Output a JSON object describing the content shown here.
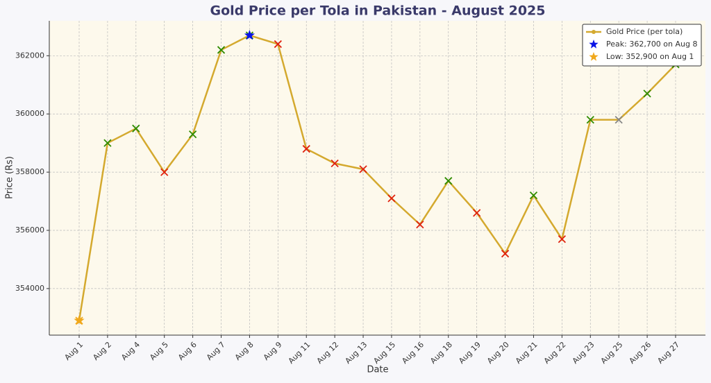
{
  "chart_data": {
    "type": "line",
    "title": "Gold Price per Tola in Pakistan - August 2025",
    "x_label": "Date",
    "y_label": "Price (Rs)",
    "categories": [
      "Aug 1",
      "Aug 2",
      "Aug 4",
      "Aug 5",
      "Aug 6",
      "Aug 7",
      "Aug 8",
      "Aug 9",
      "Aug 11",
      "Aug 12",
      "Aug 13",
      "Aug 15",
      "Aug 16",
      "Aug 18",
      "Aug 19",
      "Aug 20",
      "Aug 21",
      "Aug 22",
      "Aug 23",
      "Aug 25",
      "Aug 26",
      "Aug 27"
    ],
    "series": [
      {
        "name": "Gold Price (per tola)",
        "color": "#d4a92e",
        "marker": "x",
        "values": [
          352900,
          359000,
          359500,
          358000,
          359300,
          362200,
          362700,
          362400,
          358800,
          358300,
          358100,
          357100,
          356200,
          357700,
          356600,
          355200,
          357200,
          355700,
          359800,
          359800,
          360700,
          361700
        ],
        "marker_colors": [
          "#f0a81c",
          "#2e8b00",
          "#2e8b00",
          "#e0220f",
          "#2e8b00",
          "#2e8b00",
          "#2e8b00",
          "#e0220f",
          "#e0220f",
          "#e0220f",
          "#e0220f",
          "#e0220f",
          "#e0220f",
          "#2e8b00",
          "#e0220f",
          "#e0220f",
          "#2e8b00",
          "#e0220f",
          "#2e8b00",
          "#888888",
          "#2e8b00",
          "#2e8b00"
        ]
      },
      {
        "name": "Peak: 362,700 on Aug 8",
        "color": "#0a14e6",
        "marker": "star",
        "values": [
          null,
          null,
          null,
          null,
          null,
          null,
          362700,
          null,
          null,
          null,
          null,
          null,
          null,
          null,
          null,
          null,
          null,
          null,
          null,
          null,
          null,
          null
        ]
      },
      {
        "name": "Low: 352,900 on Aug 1",
        "color": "#f0a81c",
        "marker": "star",
        "values": [
          352900,
          null,
          null,
          null,
          null,
          null,
          null,
          null,
          null,
          null,
          null,
          null,
          null,
          null,
          null,
          null,
          null,
          null,
          null,
          null,
          null,
          null
        ]
      }
    ],
    "ylim": [
      352400,
      363200
    ],
    "yticks": [
      354000,
      356000,
      358000,
      360000,
      362000
    ],
    "grid": true,
    "legend": "upper right"
  }
}
